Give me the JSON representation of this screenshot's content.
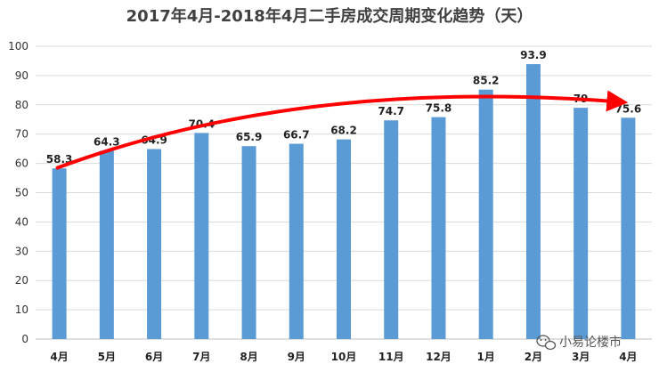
{
  "chart_data": {
    "type": "bar",
    "title": "2017年4月-2018年4月二手房成交周期变化趋势（天）",
    "categories": [
      "4月",
      "5月",
      "6月",
      "7月",
      "8月",
      "9月",
      "10月",
      "11月",
      "12月",
      "1月",
      "2月",
      "3月",
      "4月"
    ],
    "values": [
      58.3,
      64.3,
      64.9,
      70.4,
      65.9,
      66.7,
      68.2,
      74.7,
      75.8,
      85.2,
      93.9,
      79,
      75.6
    ],
    "data_labels": [
      "58.3",
      "64.3",
      "64.9",
      "70.4",
      "65.9",
      "66.7",
      "68.2",
      "74.7",
      "75.8",
      "85.2",
      "93.9",
      "79",
      "75.6"
    ],
    "ylim": [
      0,
      100
    ],
    "yticks": [
      0,
      10,
      20,
      30,
      40,
      50,
      60,
      70,
      80,
      90,
      100
    ],
    "grid": true,
    "colors": {
      "bar": "#5b9bd5",
      "trend_arrow": "#ff0000",
      "grid": "#d9d9d9"
    },
    "annotation": {
      "type": "trend-arrow",
      "direction": "up",
      "from_value": 58.5,
      "to_value": 81
    }
  },
  "watermark": {
    "icon": "wechat-icon",
    "text": "小易论楼市"
  }
}
